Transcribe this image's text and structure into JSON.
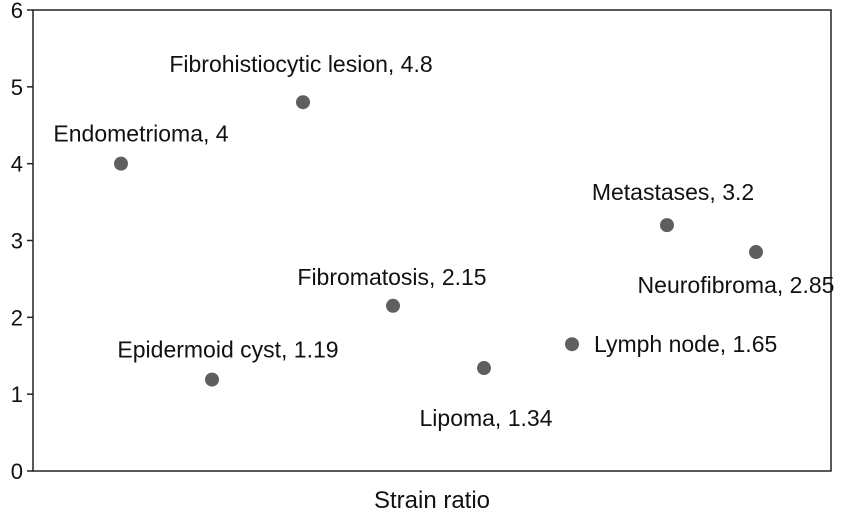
{
  "chart_data": {
    "type": "scatter",
    "xlabel": "Strain ratio",
    "ylim": [
      0,
      6
    ],
    "yticks": [
      "0",
      "1",
      "2",
      "3",
      "4",
      "5",
      "6"
    ],
    "grid": false,
    "point_color": "#5f5f5f",
    "points": [
      {
        "label": "Endometrioma, 4",
        "y": 4,
        "label_side": "above-left"
      },
      {
        "label": "Epidermoid cyst, 1.19",
        "y": 1.19,
        "label_side": "above"
      },
      {
        "label": "Fibrohistiocytic lesion, 4.8",
        "y": 4.8,
        "label_side": "above"
      },
      {
        "label": "Fibromatosis, 2.15",
        "y": 2.15,
        "label_side": "above"
      },
      {
        "label": "Lipoma, 1.34",
        "y": 1.34,
        "label_side": "below"
      },
      {
        "label": "Lymph node, 1.65",
        "y": 1.65,
        "label_side": "right"
      },
      {
        "label": "Metastases, 3.2",
        "y": 3.2,
        "label_side": "above"
      },
      {
        "label": "Neurofibroma, 2.85",
        "y": 2.85,
        "label_side": "below"
      }
    ]
  }
}
